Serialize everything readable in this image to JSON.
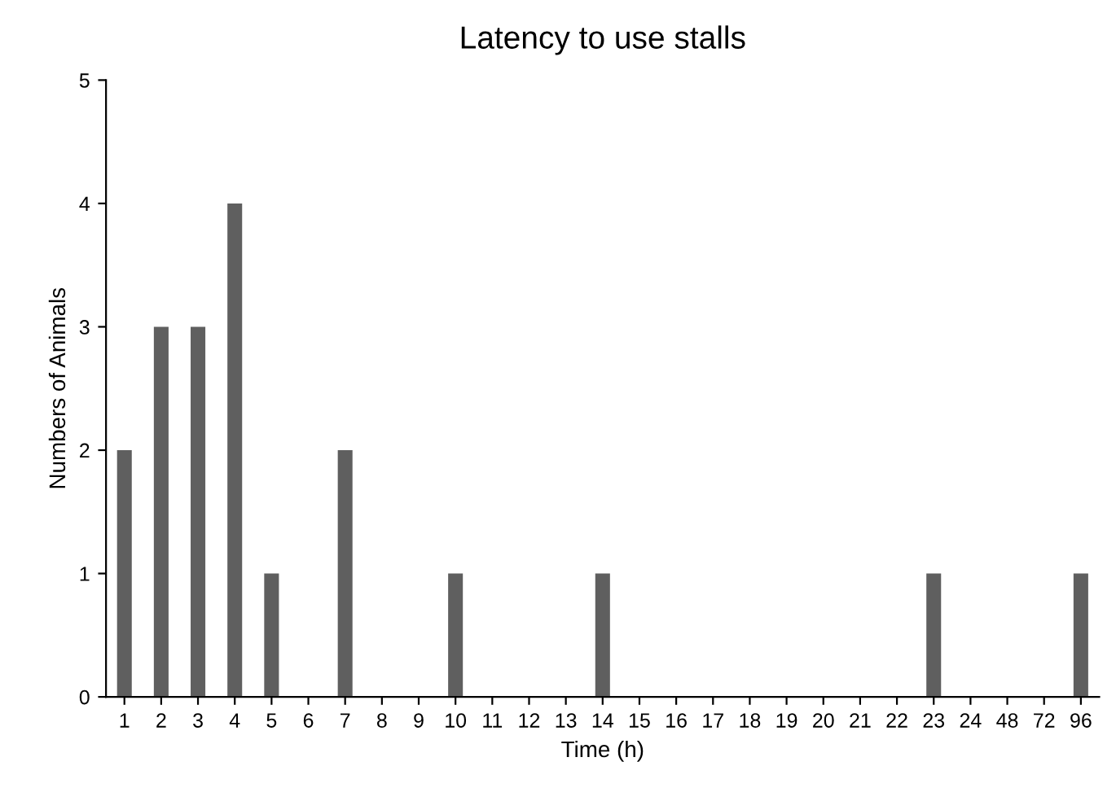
{
  "chart_data": {
    "type": "bar",
    "title": "Latency to use stalls",
    "xlabel": "Time (h)",
    "ylabel": "Numbers of Animals",
    "categories": [
      "1",
      "2",
      "3",
      "4",
      "5",
      "6",
      "7",
      "8",
      "9",
      "10",
      "11",
      "12",
      "13",
      "14",
      "15",
      "16",
      "17",
      "18",
      "19",
      "20",
      "21",
      "22",
      "23",
      "24",
      "48",
      "72",
      "96"
    ],
    "values": [
      2,
      3,
      3,
      4,
      1,
      0,
      2,
      0,
      0,
      1,
      0,
      0,
      0,
      1,
      0,
      0,
      0,
      0,
      0,
      0,
      0,
      0,
      1,
      0,
      0,
      0,
      1
    ],
    "color": "#5f5f5f",
    "ylim": [
      0,
      5
    ],
    "yticks": [
      0,
      1,
      2,
      3,
      4,
      5
    ],
    "grid": false,
    "legend": false
  }
}
